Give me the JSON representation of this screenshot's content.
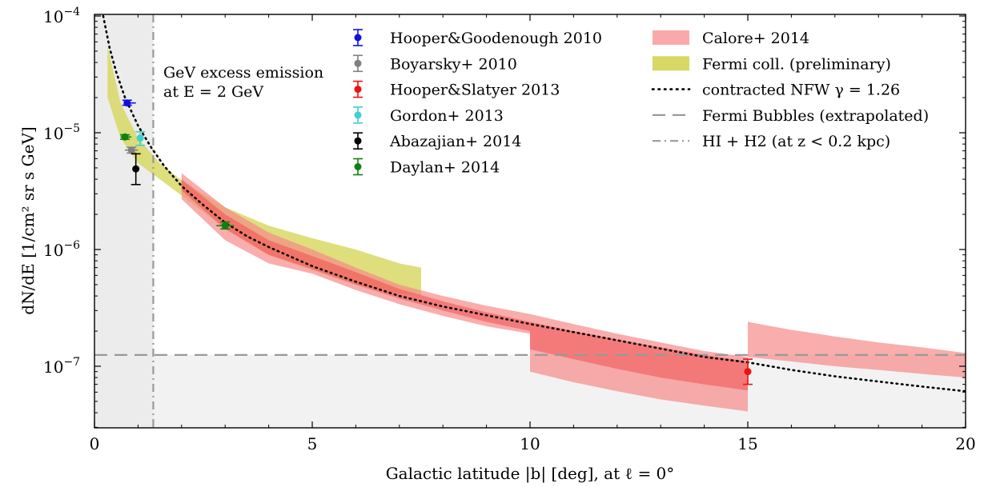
{
  "chart_data": {
    "type": "scatter",
    "xlabel": "Galactic latitude |b| [deg], at ℓ = 0°",
    "ylabel": "dN/dE [1/cm² sr s GeV]",
    "x_range": [
      0,
      20
    ],
    "y_range": [
      3e-08,
      0.0001
    ],
    "y_scale": "log",
    "x_ticks": [
      0,
      5,
      10,
      15,
      20
    ],
    "x_tick_labels": [
      "0",
      "5",
      "10",
      "15",
      "20"
    ],
    "y_ticks": [
      1e-07,
      1e-06,
      1e-05,
      0.0001
    ],
    "y_tick_labels": [
      {
        "base": "10",
        "exp": "−7"
      },
      {
        "base": "10",
        "exp": "−6"
      },
      {
        "base": "10",
        "exp": "−5"
      },
      {
        "base": "10",
        "exp": "−4"
      }
    ],
    "annotation": {
      "line1": "GeV excess emission",
      "line2": "at E = 2 GeV"
    },
    "legend_placement": "top",
    "points": [
      {
        "name": "Hooper&Goodenough 2010",
        "color": "#1010e0",
        "x": 0.75,
        "y": 1.8e-05,
        "ylo": 1.72e-05,
        "yhi": 1.9e-05,
        "xlo": 0.7,
        "xhi": 0.95
      },
      {
        "name": "Boyarsky+ 2010",
        "color": "#808080",
        "x": 0.85,
        "y": 7.1e-06,
        "ylo": 6.7e-06,
        "yhi": 7.5e-06,
        "xlo": 0.7,
        "xhi": 1.0
      },
      {
        "name": "Hooper&Slatyer 2013",
        "color": "#ee1111",
        "x": 15.0,
        "y": 9e-08,
        "ylo": 7e-08,
        "yhi": 1.15e-07,
        "xlo": 15.0,
        "xhi": 15.0
      },
      {
        "name": "Gordon+ 2013",
        "color": "#40d0d0",
        "x": 1.05,
        "y": 9e-06,
        "ylo": 7.8e-06,
        "yhi": 1.02e-05,
        "xlo": 1.05,
        "xhi": 1.05
      },
      {
        "name": "Abazajian+ 2014",
        "color": "#000000",
        "x": 0.95,
        "y": 4.9e-06,
        "ylo": 3.6e-06,
        "yhi": 6.6e-06,
        "xlo": 0.95,
        "xhi": 0.95
      },
      {
        "name": "Daylan+ 2014",
        "color": "#108010",
        "x": 0.7,
        "y": 9.2e-06,
        "ylo": 8.8e-06,
        "yhi": 9.6e-06,
        "xlo": 0.6,
        "xhi": 0.85
      },
      {
        "name": "Daylan+ 2014",
        "color": "#108010",
        "x": 3.0,
        "y": 1.6e-06,
        "ylo": 1.5e-06,
        "yhi": 1.72e-06,
        "xlo": 2.8,
        "xhi": 3.2
      }
    ],
    "bands": [
      {
        "name": "Fermi coll. (preliminary)",
        "color": "#d8d865",
        "opacity": 0.85,
        "segments": [
          {
            "x": [
              0.3,
              0.6,
              1.0,
              1.5,
              2.0,
              3.0,
              4.0,
              5.0,
              6.0,
              7.0,
              7.5
            ],
            "lo": [
              2e-05,
              9e-06,
              5.5e-06,
              4e-06,
              2.9e-06,
              1.5e-06,
              9e-07,
              6.6e-07,
              5e-07,
              4.2e-07,
              4e-07
            ],
            "hi": [
              5.5e-05,
              1.8e-05,
              9e-06,
              5.5e-06,
              3.9e-06,
              2.3e-06,
              1.6e-06,
              1.25e-06,
              1e-06,
              7.6e-07,
              7e-07
            ]
          }
        ]
      },
      {
        "name": "Calore+ 2014",
        "color": "#f68a8a",
        "opacity": 0.7,
        "segments": [
          {
            "x": [
              2,
              3,
              4,
              5
            ],
            "lo": [
              2.7e-06,
              1.2e-06,
              7.6e-07,
              6.2e-07
            ],
            "hi": [
              4.5e-06,
              2.3e-06,
              1.4e-06,
              1e-06
            ]
          },
          {
            "x": [
              5,
              6,
              7,
              8,
              9,
              10
            ],
            "lo": [
              6.2e-07,
              4.5e-07,
              3.4e-07,
              2.7e-07,
              2.2e-07,
              1.9e-07
            ],
            "hi": [
              1e-06,
              7e-07,
              5e-07,
              4e-07,
              3.3e-07,
              2.8e-07
            ]
          },
          {
            "x": [
              10,
              11,
              12,
              13,
              14,
              15
            ],
            "lo": [
              9e-08,
              7.3e-08,
              6.1e-08,
              5.2e-08,
              4.6e-08,
              4.1e-08
            ],
            "hi": [
              2.8e-07,
              2.3e-07,
              1.9e-07,
              1.6e-07,
              1.35e-07,
              1.2e-07
            ]
          },
          {
            "x": [
              15,
              16,
              17,
              18,
              19,
              20
            ],
            "lo": [
              1.2e-07,
              1.1e-07,
              1e-07,
              9.3e-08,
              8.6e-08,
              8e-08
            ],
            "hi": [
              2.4e-07,
              2.05e-07,
              1.8e-07,
              1.6e-07,
              1.45e-07,
              1.3e-07
            ]
          }
        ]
      },
      {
        "name": "Calore+ 2014 (core)",
        "color": "#f05050",
        "opacity": 0.55,
        "segments": [
          {
            "x": [
              2,
              3,
              4,
              5
            ],
            "lo": [
              3.2e-06,
              1.5e-06,
              9e-07,
              6.8e-07
            ],
            "hi": [
              4e-06,
              2e-06,
              1.2e-06,
              8.8e-07
            ]
          },
          {
            "x": [
              5,
              6,
              7,
              8,
              9,
              10
            ],
            "lo": [
              6.8e-07,
              5e-07,
              3.8e-07,
              3e-07,
              2.4e-07,
              2e-07
            ],
            "hi": [
              8.8e-07,
              6.4e-07,
              4.6e-07,
              3.6e-07,
              2.9e-07,
              2.4e-07
            ]
          },
          {
            "x": [
              10,
              11,
              12,
              13,
              14,
              15
            ],
            "lo": [
              1.4e-07,
              1.15e-07,
              9.5e-08,
              8e-08,
              7e-08,
              6.2e-08
            ],
            "hi": [
              2.4e-07,
              2e-07,
              1.7e-07,
              1.45e-07,
              1.25e-07,
              1.1e-07
            ]
          }
        ]
      }
    ],
    "nfw_curve": {
      "name": "contracted NFW γ = 1.26",
      "x": [
        0.2,
        0.35,
        0.5,
        0.7,
        1.0,
        1.3,
        1.6,
        2.0,
        2.5,
        3.0,
        3.5,
        4.0,
        5.0,
        6.0,
        7.0,
        8.0,
        10.0,
        12.0,
        14.0,
        15.0,
        16.0,
        17.0,
        18.0,
        19.0,
        20.0
      ],
      "y": [
        0.0001,
        5.3e-05,
        3.3e-05,
        2e-05,
        1.15e-05,
        7.5e-06,
        5.2e-06,
        3.5e-06,
        2.4e-06,
        1.7e-06,
        1.3e-06,
        1.05e-06,
        7.2e-07,
        5.3e-07,
        4e-07,
        3.25e-07,
        2.3e-07,
        1.67e-07,
        1.2e-07,
        1.08e-07,
        9.3e-08,
        8.2e-08,
        7.4e-08,
        6.7e-08,
        6.1e-08
      ]
    },
    "fermi_bubbles": {
      "name": "Fermi Bubbles (extrapolated)",
      "y": 1.25e-07
    },
    "hi_h2": {
      "name": "HI + H2 (at z < 0.2 kpc)",
      "x": 1.35
    },
    "legend_left": [
      {
        "label": "Hooper&Goodenough 2010",
        "color": "#1010e0"
      },
      {
        "label": "Boyarsky+ 2010",
        "color": "#808080"
      },
      {
        "label": "Hooper&Slatyer 2013",
        "color": "#ee1111"
      },
      {
        "label": "Gordon+ 2013",
        "color": "#40d0d0"
      },
      {
        "label": "Abazajian+ 2014",
        "color": "#000000"
      },
      {
        "label": "Daylan+ 2014",
        "color": "#108010"
      }
    ],
    "legend_right": [
      {
        "label": "Calore+ 2014",
        "kind": "patch",
        "color": "#f9a9a9"
      },
      {
        "label": "Fermi coll. (preliminary)",
        "kind": "patch",
        "color": "#d8d865"
      },
      {
        "label": "contracted NFW γ = 1.26",
        "kind": "dotted",
        "color": "#000000"
      },
      {
        "label": "Fermi Bubbles (extrapolated)",
        "kind": "dashed",
        "color": "#999999"
      },
      {
        "label": "HI + H2 (at z < 0.2 kpc)",
        "kind": "dashdot",
        "color": "#999999"
      }
    ]
  }
}
